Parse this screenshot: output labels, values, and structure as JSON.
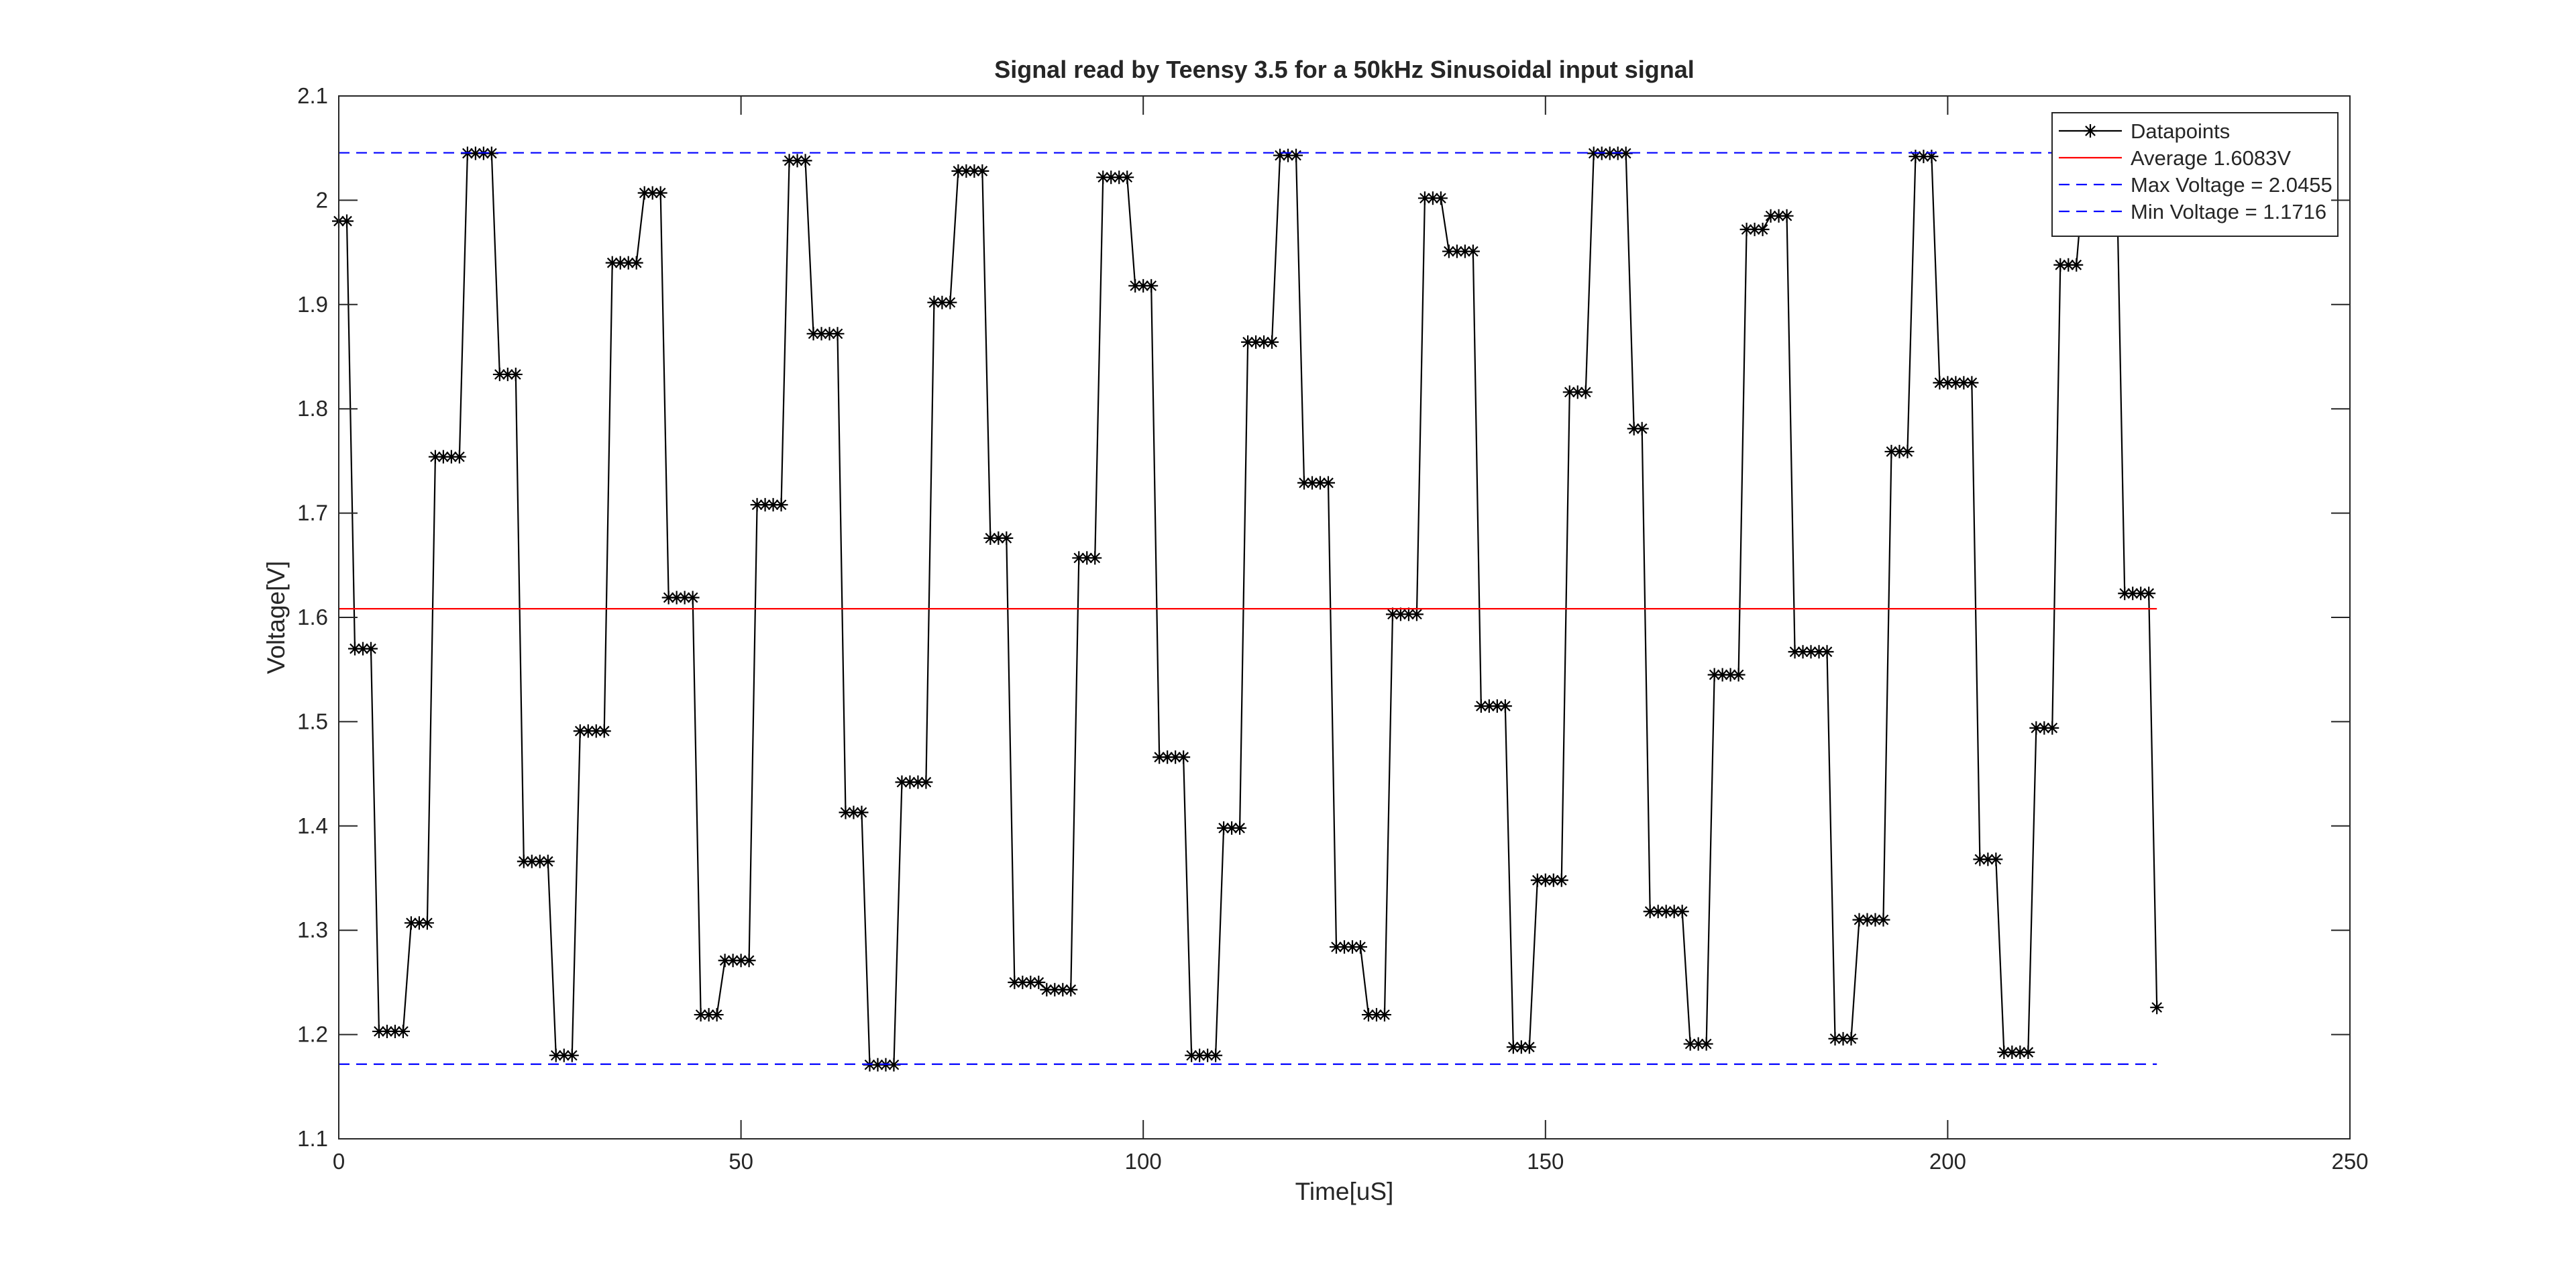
{
  "chart_data": {
    "type": "line",
    "title": "Signal read by Teensy 3.5 for a 50kHz Sinusoidal input signal",
    "x_label": "Time[uS]",
    "y_label": "Voltage[V]",
    "xlim": [
      0,
      250
    ],
    "ylim": [
      1.1,
      2.1
    ],
    "xticks": [
      0,
      50,
      100,
      150,
      200,
      250
    ],
    "yticks": [
      1.1,
      1.2,
      1.3,
      1.4,
      1.5,
      1.6,
      1.7,
      1.8,
      1.9,
      2,
      2.1
    ],
    "grid": false,
    "legend_position": "upper right",
    "series": [
      {
        "name": "Datapoints",
        "color": "#000000",
        "marker": "asterisk",
        "line_style": "solid",
        "x": [
          0,
          1,
          2,
          3,
          4,
          5,
          6,
          7,
          8,
          9,
          10,
          11,
          12,
          13,
          14,
          15,
          16,
          17,
          18,
          19,
          20,
          21,
          22,
          23,
          24,
          25,
          26,
          27,
          28,
          29,
          30,
          31,
          32,
          33,
          34,
          35,
          36,
          37,
          38,
          39,
          40,
          41,
          42,
          43,
          44,
          45,
          46,
          47,
          48,
          49,
          50,
          51,
          52,
          53,
          54,
          55,
          56,
          57,
          58,
          59,
          60,
          61,
          62,
          63,
          64,
          65,
          66,
          67,
          68,
          69,
          70,
          71,
          72,
          73,
          74,
          75,
          76,
          77,
          78,
          79,
          80,
          81,
          82,
          83,
          84,
          85,
          86,
          87,
          88,
          89,
          90,
          91,
          92,
          93,
          94,
          95,
          96,
          97,
          98,
          99,
          100,
          101,
          102,
          103,
          104,
          105,
          106,
          107,
          108,
          109,
          110,
          111,
          112,
          113,
          114,
          115,
          116,
          117,
          118,
          119,
          120,
          121,
          122,
          123,
          124,
          125,
          126,
          127,
          128,
          129,
          130,
          131,
          132,
          133,
          134,
          135,
          136,
          137,
          138,
          139,
          140,
          141,
          142,
          143,
          144,
          145,
          146,
          147,
          148,
          149,
          150,
          151,
          152,
          153,
          154,
          155,
          156,
          157,
          158,
          159,
          160,
          161,
          162,
          163,
          164,
          165,
          166,
          167,
          168,
          169,
          170,
          171,
          172,
          173,
          174,
          175,
          176,
          177,
          178,
          179,
          180,
          181,
          182,
          183,
          184,
          185,
          186,
          187,
          188,
          189,
          190,
          191,
          192,
          193,
          194,
          195,
          196,
          197,
          198,
          199,
          200,
          201,
          202,
          203,
          204,
          205,
          206,
          207,
          208,
          209,
          210,
          211,
          212,
          213,
          214,
          215,
          216,
          217,
          218,
          219,
          220,
          221,
          222,
          223,
          224,
          225,
          226
        ],
        "values": [
          1.98,
          1.98,
          1.57,
          1.57,
          1.57,
          1.203,
          1.203,
          1.203,
          1.203,
          1.307,
          1.307,
          1.307,
          1.754,
          1.754,
          1.754,
          1.754,
          2.045,
          2.045,
          2.045,
          2.045,
          1.833,
          1.833,
          1.833,
          1.366,
          1.366,
          1.366,
          1.366,
          1.18,
          1.18,
          1.18,
          1.491,
          1.491,
          1.491,
          1.491,
          1.94,
          1.94,
          1.94,
          1.94,
          2.007,
          2.007,
          2.007,
          1.619,
          1.619,
          1.619,
          1.619,
          1.219,
          1.219,
          1.219,
          1.271,
          1.271,
          1.271,
          1.271,
          1.708,
          1.708,
          1.708,
          1.708,
          2.038,
          2.038,
          2.038,
          1.872,
          1.872,
          1.872,
          1.872,
          1.413,
          1.413,
          1.413,
          1.171,
          1.171,
          1.171,
          1.171,
          1.442,
          1.442,
          1.442,
          1.442,
          1.902,
          1.902,
          1.902,
          2.028,
          2.028,
          2.028,
          2.028,
          1.676,
          1.676,
          1.676,
          1.25,
          1.25,
          1.25,
          1.25,
          1.243,
          1.243,
          1.243,
          1.243,
          1.657,
          1.657,
          1.657,
          2.022,
          2.022,
          2.022,
          2.022,
          1.918,
          1.918,
          1.918,
          1.466,
          1.466,
          1.466,
          1.466,
          1.18,
          1.18,
          1.18,
          1.18,
          1.398,
          1.398,
          1.398,
          1.864,
          1.864,
          1.864,
          1.864,
          2.043,
          2.043,
          2.043,
          1.729,
          1.729,
          1.729,
          1.729,
          1.284,
          1.284,
          1.284,
          1.284,
          1.219,
          1.219,
          1.219,
          1.603,
          1.603,
          1.603,
          1.603,
          2.002,
          2.002,
          2.002,
          1.951,
          1.951,
          1.951,
          1.951,
          1.515,
          1.515,
          1.515,
          1.515,
          1.188,
          1.188,
          1.188,
          1.348,
          1.348,
          1.348,
          1.348,
          1.816,
          1.816,
          1.816,
          2.045,
          2.045,
          2.045,
          2.045,
          2.045,
          1.781,
          1.781,
          1.318,
          1.318,
          1.318,
          1.318,
          1.318,
          1.191,
          1.191,
          1.191,
          1.545,
          1.545,
          1.545,
          1.545,
          1.972,
          1.972,
          1.972,
          1.985,
          1.985,
          1.985,
          1.567,
          1.567,
          1.567,
          1.567,
          1.567,
          1.196,
          1.196,
          1.196,
          1.31,
          1.31,
          1.31,
          1.31,
          1.759,
          1.759,
          1.759,
          2.042,
          2.042,
          2.042,
          1.825,
          1.825,
          1.825,
          1.825,
          1.825,
          1.368,
          1.368,
          1.368,
          1.183,
          1.183,
          1.183,
          1.183,
          1.494,
          1.494,
          1.494,
          1.938,
          1.938,
          1.938,
          2.03,
          2.03,
          2.03,
          2.03,
          2.03,
          1.623,
          1.623,
          1.623,
          1.623,
          1.226
        ]
      },
      {
        "name": "Average 1.6083V",
        "color": "#ff0000",
        "line_style": "solid",
        "x": [
          0,
          226
        ],
        "values": [
          1.6083,
          1.6083
        ]
      },
      {
        "name": "Max Voltage = 2.0455",
        "color": "#0000ff",
        "line_style": "dashed",
        "x": [
          0,
          226
        ],
        "values": [
          2.0455,
          2.0455
        ]
      },
      {
        "name": "Min Voltage = 1.1716",
        "color": "#0000ff",
        "line_style": "dashed",
        "x": [
          0,
          226
        ],
        "values": [
          1.1716,
          1.1716
        ]
      }
    ]
  }
}
